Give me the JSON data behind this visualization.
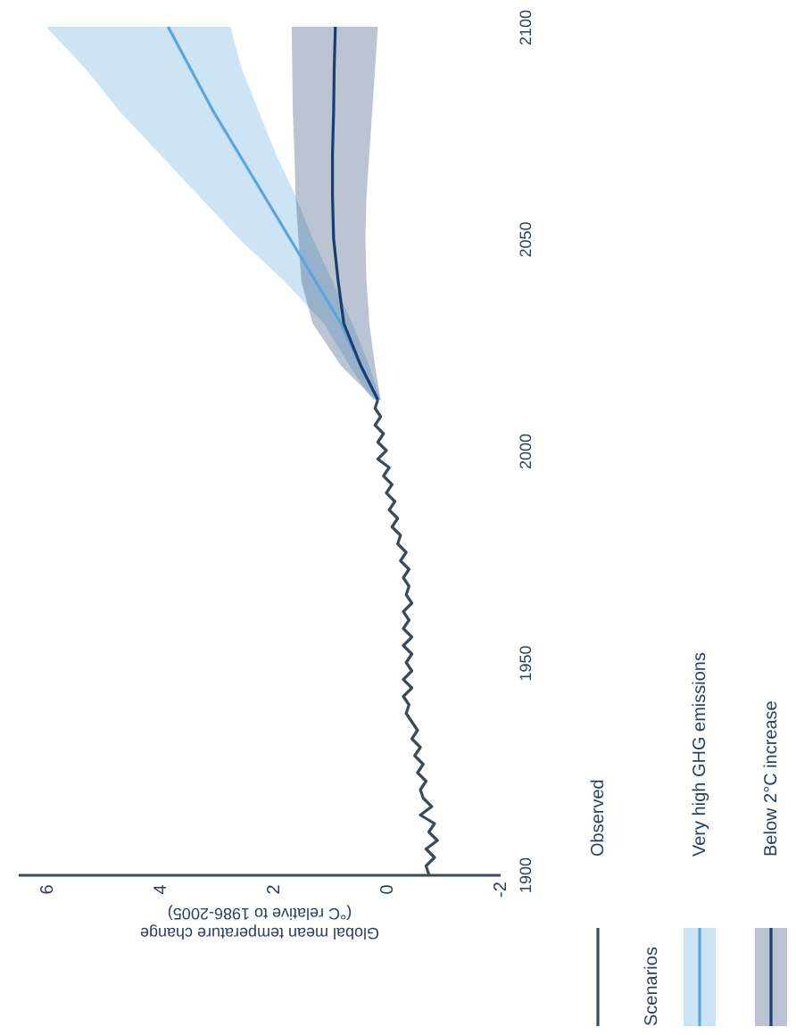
{
  "chart_data": {
    "type": "line",
    "orientation": "horizontal",
    "xlabel": "Global mean temperature change\n(°C relative to 1986-2005)",
    "legend_title": "Scenarios",
    "legend": "bottom right",
    "grid": false,
    "marker": "none",
    "line_style": "solid",
    "xlim": [
      6.5,
      -2
    ],
    "xticks": [
      6,
      4,
      2,
      0,
      -2
    ],
    "ylim": [
      1900,
      2100
    ],
    "yticks": [
      1900,
      1950,
      2000,
      2050,
      2100
    ],
    "series": [
      {
        "name": "Observed",
        "color": "#3b4a57",
        "x": [
          1900,
          1902,
          1904,
          1906,
          1908,
          1910,
          1912,
          1914,
          1916,
          1918,
          1920,
          1922,
          1924,
          1926,
          1928,
          1930,
          1932,
          1934,
          1936,
          1938,
          1940,
          1942,
          1944,
          1946,
          1948,
          1950,
          1952,
          1954,
          1956,
          1958,
          1960,
          1962,
          1964,
          1966,
          1968,
          1970,
          1972,
          1974,
          1976,
          1978,
          1980,
          1982,
          1984,
          1986,
          1988,
          1990,
          1992,
          1994,
          1996,
          1998,
          2000,
          2002,
          2004,
          2006,
          2008,
          2010,
          2012
        ],
        "values": [
          -0.75,
          -0.7,
          -0.85,
          -0.7,
          -0.9,
          -0.75,
          -0.85,
          -0.6,
          -0.8,
          -0.65,
          -0.6,
          -0.7,
          -0.55,
          -0.65,
          -0.5,
          -0.6,
          -0.45,
          -0.55,
          -0.45,
          -0.35,
          -0.4,
          -0.3,
          -0.45,
          -0.3,
          -0.45,
          -0.35,
          -0.45,
          -0.3,
          -0.45,
          -0.3,
          -0.4,
          -0.3,
          -0.45,
          -0.35,
          -0.4,
          -0.3,
          -0.4,
          -0.25,
          -0.35,
          -0.2,
          -0.25,
          -0.1,
          -0.2,
          -0.05,
          -0.15,
          0.0,
          -0.1,
          0.05,
          -0.05,
          0.15,
          0.0,
          0.15,
          0.05,
          0.2,
          0.1,
          0.2,
          0.15
        ]
      },
      {
        "name": "Very high GHG emissions",
        "color": "#5aa6dc",
        "x": [
          2012,
          2020,
          2030,
          2040,
          2050,
          2060,
          2070,
          2080,
          2090,
          2100
        ],
        "values": [
          0.15,
          0.45,
          0.8,
          1.25,
          1.7,
          2.15,
          2.6,
          3.05,
          3.45,
          3.85
        ],
        "lower": [
          0.1,
          0.3,
          0.6,
          0.95,
          1.3,
          1.6,
          1.95,
          2.25,
          2.55,
          2.75
        ],
        "upper": [
          0.25,
          0.65,
          1.1,
          1.8,
          2.6,
          3.3,
          4.0,
          4.7,
          5.3,
          6.0
        ]
      },
      {
        "name": "Below 2°C increase",
        "color": "#1f3b6b",
        "x": [
          2012,
          2020,
          2030,
          2040,
          2050,
          2060,
          2070,
          2080,
          2090,
          2100
        ],
        "values": [
          0.15,
          0.45,
          0.75,
          0.85,
          0.93,
          0.95,
          0.95,
          0.93,
          0.92,
          0.9
        ],
        "lower": [
          0.1,
          0.2,
          0.3,
          0.35,
          0.37,
          0.35,
          0.3,
          0.25,
          0.2,
          0.15
        ],
        "upper": [
          0.2,
          0.8,
          1.3,
          1.5,
          1.55,
          1.6,
          1.62,
          1.65,
          1.66,
          1.67
        ]
      }
    ]
  }
}
